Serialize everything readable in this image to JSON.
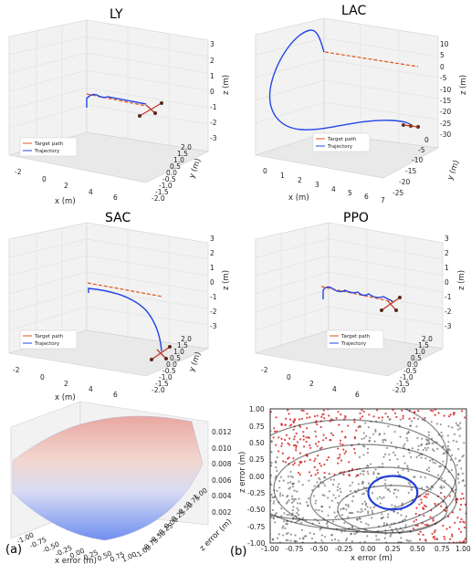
{
  "chart_data": [
    {
      "type": "line3d",
      "title": "LY",
      "xlabel": "x (m)",
      "ylabel": "y (m)",
      "zlabel": "z (m)",
      "xticks": [
        "-2",
        "0",
        "2",
        "4",
        "6"
      ],
      "yticks": [
        "-2.0",
        "-1.5",
        "-1.0",
        "-0.5",
        "0.0",
        "0.5",
        "1.0",
        "1.5",
        "2.0"
      ],
      "zticks": [
        "3",
        "2",
        "1",
        "0",
        "-1",
        "-2",
        "-3"
      ],
      "legend": [
        "Target path",
        "Trajectory"
      ],
      "series": [
        {
          "name": "Target path",
          "x": [
            0,
            6.5
          ],
          "y": [
            0,
            0
          ],
          "z": [
            0,
            0
          ]
        },
        {
          "name": "Trajectory",
          "x": [
            -0.5,
            0,
            1,
            2,
            3,
            4,
            5,
            6
          ],
          "y": [
            0,
            0,
            0,
            0,
            0,
            0,
            0,
            0
          ],
          "z": [
            -1,
            0,
            0.3,
            0.1,
            0,
            0,
            0,
            0
          ]
        }
      ]
    },
    {
      "type": "line3d",
      "title": "LAC",
      "xlabel": "x (m)",
      "ylabel": "y (m)",
      "zlabel": "z (m)",
      "xticks": [
        "0",
        "1",
        "2",
        "3",
        "4",
        "5",
        "6",
        "7"
      ],
      "yticks": [
        "-25",
        "-20",
        "-15",
        "-10",
        "-5",
        "0"
      ],
      "zticks": [
        "10",
        "5",
        "0",
        "-5",
        "-10",
        "-15",
        "-20",
        "-25",
        "-30"
      ],
      "legend": [
        "Target path",
        "Trajectory"
      ]
    },
    {
      "type": "line3d",
      "title": "SAC",
      "xlabel": "x (m)",
      "ylabel": "y (m)",
      "zlabel": "z (m)",
      "xticks": [
        "-2",
        "0",
        "2",
        "4",
        "6"
      ],
      "yticks": [
        "-2.0",
        "-1.5",
        "-1.0",
        "-0.5",
        "0.0",
        "0.5",
        "1.0",
        "1.5",
        "2.0"
      ],
      "zticks": [
        "3",
        "2",
        "1",
        "0",
        "-1",
        "-2",
        "-3"
      ],
      "legend": [
        "Target path",
        "Trajectory"
      ]
    },
    {
      "type": "line3d",
      "title": "PPO",
      "xlabel": "x (m)",
      "ylabel": "y (m)",
      "zlabel": "z (m)",
      "xticks": [
        "-2",
        "0",
        "2",
        "4",
        "6"
      ],
      "yticks": [
        "-2.0",
        "-1.5",
        "-1.0",
        "-0.5",
        "0.0",
        "0.5",
        "1.0",
        "1.5",
        "2.0"
      ],
      "zticks": [
        "3",
        "2",
        "1",
        "0",
        "-1",
        "-2",
        "-3"
      ],
      "legend": [
        "Target path",
        "Trajectory"
      ]
    },
    {
      "type": "surface3d",
      "xlabel": "x error (m)",
      "ylabel": "z error (m)",
      "xticks": [
        "-1.00",
        "-0.75",
        "-0.50",
        "-0.25",
        "0.00",
        "0.25",
        "0.50",
        "0.75",
        "1.00"
      ],
      "yticks": [
        "-1.00",
        "-0.75",
        "-0.50",
        "-0.25",
        "0.00",
        "0.25",
        "0.50",
        "0.75",
        "1.00"
      ],
      "zticks": [
        "0.012",
        "0.010",
        "0.008",
        "0.006",
        "0.004",
        "0.002"
      ],
      "colormap": "coolwarm",
      "tag": "(a)"
    },
    {
      "type": "scatter",
      "xlabel": "x error (m)",
      "ylabel": "z error (m)",
      "xticks": [
        "-1.00",
        "-0.75",
        "-0.50",
        "-0.25",
        "0.00",
        "0.25",
        "0.50",
        "0.75",
        "1.00"
      ],
      "yticks": [
        "1.00",
        "0.75",
        "0.50",
        "0.25",
        "0.00",
        "-0.25",
        "-0.50",
        "-0.75",
        "-1.00"
      ],
      "xlim": [
        -1,
        1
      ],
      "ylim": [
        -1,
        1
      ],
      "ellipse": {
        "cx": 0.25,
        "cy": -0.25,
        "rx": 0.25,
        "ry": 0.25
      },
      "colors": {
        "stable": "#d62728",
        "unstable": "#333333",
        "roa": "#1f3fd6"
      },
      "tag": "(b)"
    }
  ]
}
